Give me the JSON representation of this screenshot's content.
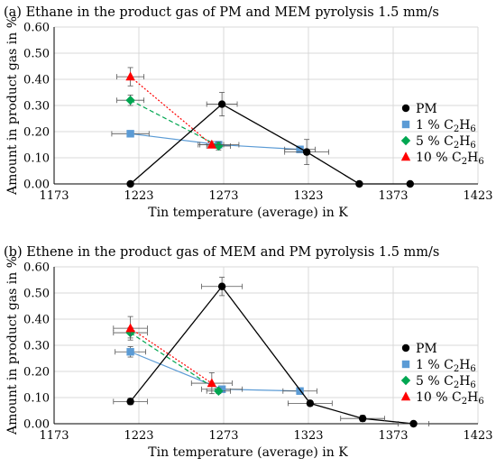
{
  "chart_data": [
    {
      "type": "line",
      "title": "(a) Ethane in the product gas of PM and MEM pyrolysis 1.5 mm/s",
      "xlabel": "Tin temperature (average) in K",
      "ylabel": "Amount in product gas in %",
      "xlim": [
        1173,
        1423
      ],
      "ylim": [
        0,
        0.6
      ],
      "xticks": [
        "1173",
        "1223",
        "1273",
        "1323",
        "1373",
        "1423"
      ],
      "yticks": [
        "0.00",
        "0.10",
        "0.20",
        "0.30",
        "0.40",
        "0.50",
        "0.60"
      ],
      "grid": true,
      "legend_position": "right",
      "series": [
        {
          "name": "PM",
          "color": "#000000",
          "marker": "circle",
          "style": "solid",
          "x": [
            1218,
            1272,
            1322,
            1353,
            1383
          ],
          "y": [
            0.0,
            0.305,
            0.122,
            0.0,
            0.0
          ],
          "yerr": [
            0,
            0.045,
            0.048,
            0,
            0
          ],
          "xerr": [
            0,
            9,
            13,
            0,
            0
          ]
        },
        {
          "name": "1 % C2H6",
          "color": "#5b9bd5",
          "marker": "square",
          "style": "solid",
          "x": [
            1218,
            1270,
            1318
          ],
          "y": [
            0.192,
            0.15,
            0.132
          ],
          "yerr": [
            0.008,
            0.012,
            0.01
          ],
          "xerr": [
            11,
            12,
            9
          ]
        },
        {
          "name": "5 % C2H6",
          "color": "#00a651",
          "marker": "diamond",
          "style": "dashed",
          "x": [
            1218,
            1270
          ],
          "y": [
            0.32,
            0.145
          ],
          "yerr": [
            0.02,
            0.015
          ],
          "xerr": [
            8,
            7
          ]
        },
        {
          "name": "10 % C2H6",
          "color": "#ff0000",
          "marker": "triangle",
          "style": "dotted",
          "x": [
            1218,
            1266
          ],
          "y": [
            0.41,
            0.15
          ],
          "yerr": [
            0.035,
            0.012
          ],
          "xerr": [
            8,
            7
          ]
        }
      ]
    },
    {
      "type": "line",
      "title": "(b) Ethene in the product gas of MEM and PM pyrolysis 1.5 mm/s",
      "xlabel": "Tin temperature (average) in K",
      "ylabel": "Amount in product gas in %",
      "xlim": [
        1173,
        1423
      ],
      "ylim": [
        0,
        0.6
      ],
      "xticks": [
        "1173",
        "1223",
        "1273",
        "1323",
        "1373",
        "1423"
      ],
      "yticks": [
        "0.00",
        "0.10",
        "0.20",
        "0.30",
        "0.40",
        "0.50",
        "0.60"
      ],
      "grid": true,
      "legend_position": "right",
      "series": [
        {
          "name": "PM",
          "color": "#000000",
          "marker": "circle",
          "style": "solid",
          "x": [
            1218,
            1272,
            1324,
            1355,
            1385
          ],
          "y": [
            0.085,
            0.525,
            0.078,
            0.02,
            0.0
          ],
          "yerr": [
            0.012,
            0.035,
            0.01,
            0.012,
            0
          ],
          "xerr": [
            10,
            12,
            13,
            13,
            9
          ]
        },
        {
          "name": "1 % C2H6",
          "color": "#5b9bd5",
          "marker": "square",
          "style": "solid",
          "x": [
            1218,
            1272,
            1318
          ],
          "y": [
            0.275,
            0.132,
            0.125
          ],
          "yerr": [
            0.02,
            0.01,
            0.012
          ],
          "xerr": [
            9,
            12,
            10
          ]
        },
        {
          "name": "5 % C2H6",
          "color": "#00a651",
          "marker": "diamond",
          "style": "dashed",
          "x": [
            1218,
            1270
          ],
          "y": [
            0.348,
            0.125
          ],
          "yerr": [
            0.02,
            0.01
          ],
          "xerr": [
            10,
            7
          ]
        },
        {
          "name": "10 % C2H6",
          "color": "#ff0000",
          "marker": "triangle",
          "style": "dotted",
          "x": [
            1218,
            1266
          ],
          "y": [
            0.365,
            0.155
          ],
          "yerr": [
            0.045,
            0.04
          ],
          "xerr": [
            10,
            12
          ]
        }
      ]
    }
  ],
  "legend": {
    "pm": "PM",
    "c2h6_1": "1 % C",
    "c2h6_5": "5 % C",
    "c2h6_10": "10 % C",
    "h_letter": "H",
    "sub_2": "2",
    "sub_6": "6"
  }
}
